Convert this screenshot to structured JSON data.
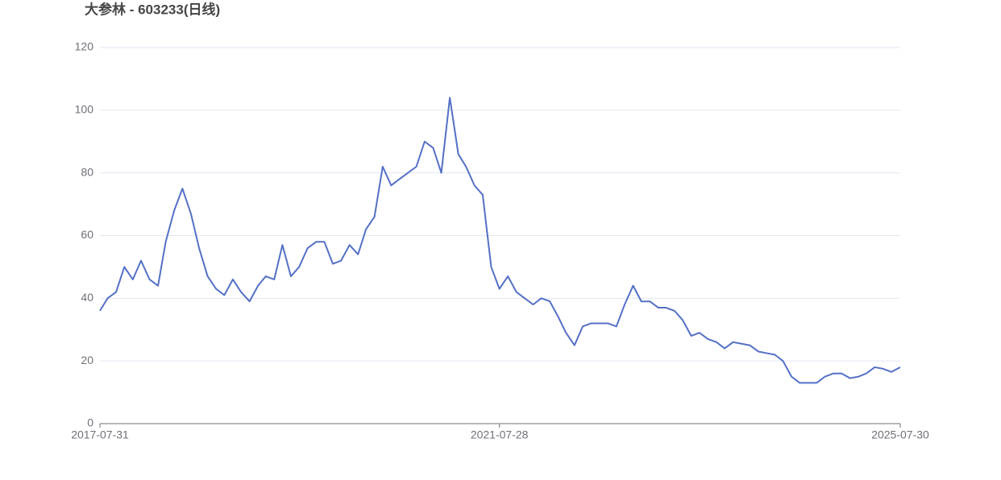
{
  "chart_data": {
    "type": "line",
    "title": "大参林 - 603233(日线)",
    "x": [
      "2017-07-31",
      "2017-08-28",
      "2017-09-28",
      "2017-10-28",
      "2017-11-28",
      "2017-12-28",
      "2018-01-28",
      "2018-02-28",
      "2018-03-28",
      "2018-04-28",
      "2018-05-28",
      "2018-06-28",
      "2018-07-28",
      "2018-08-28",
      "2018-09-28",
      "2018-10-28",
      "2018-11-28",
      "2018-12-28",
      "2019-01-28",
      "2019-02-28",
      "2019-03-28",
      "2019-04-28",
      "2019-05-28",
      "2019-06-28",
      "2019-07-28",
      "2019-08-28",
      "2019-09-28",
      "2019-10-28",
      "2019-11-28",
      "2019-12-28",
      "2020-01-28",
      "2020-02-28",
      "2020-03-28",
      "2020-04-28",
      "2020-05-28",
      "2020-06-28",
      "2020-07-28",
      "2020-08-28",
      "2020-09-28",
      "2020-10-28",
      "2020-11-28",
      "2020-12-28",
      "2021-01-28",
      "2021-02-28",
      "2021-03-28",
      "2021-04-28",
      "2021-05-28",
      "2021-06-28",
      "2021-07-28",
      "2021-08-28",
      "2021-09-28",
      "2021-10-28",
      "2021-11-28",
      "2021-12-28",
      "2022-01-28",
      "2022-02-28",
      "2022-03-28",
      "2022-04-28",
      "2022-05-28",
      "2022-06-28",
      "2022-07-28",
      "2022-08-28",
      "2022-09-28",
      "2022-10-28",
      "2022-11-28",
      "2022-12-28",
      "2023-01-28",
      "2023-02-28",
      "2023-03-28",
      "2023-04-28",
      "2023-05-28",
      "2023-06-28",
      "2023-07-28",
      "2023-08-28",
      "2023-09-28",
      "2023-10-28",
      "2023-11-28",
      "2023-12-28",
      "2024-01-28",
      "2024-02-28",
      "2024-03-28",
      "2024-04-28",
      "2024-05-28",
      "2024-06-28",
      "2024-07-28",
      "2024-08-28",
      "2024-09-28",
      "2024-10-28",
      "2024-11-28",
      "2024-12-28",
      "2025-01-28",
      "2025-02-28",
      "2025-03-28",
      "2025-04-28",
      "2025-05-28",
      "2025-06-28",
      "2025-07-30"
    ],
    "series": [
      {
        "color": "#5470c6",
        "values": [
          36,
          40,
          42,
          50,
          46,
          52,
          46,
          44,
          58,
          68,
          75,
          67,
          56,
          47,
          43,
          41,
          46,
          42,
          39,
          44,
          47,
          46,
          57,
          47,
          50,
          56,
          58,
          58,
          51,
          52,
          57,
          54,
          62,
          66,
          82,
          76,
          78,
          80,
          82,
          90,
          88,
          80,
          104,
          86,
          82,
          76,
          73,
          50,
          43,
          47,
          42,
          40,
          38,
          40,
          39,
          34,
          29,
          25,
          31,
          32,
          32,
          32,
          31,
          38,
          44,
          39,
          39,
          37,
          37,
          36,
          33,
          28,
          29,
          27,
          26,
          24,
          26,
          25.5,
          25,
          23,
          22.5,
          22,
          20,
          15,
          13,
          13,
          13,
          15,
          16,
          16,
          14.5,
          15,
          16,
          18,
          17.5,
          16.5,
          18
        ]
      }
    ],
    "xlim": [
      "2017-07-31",
      "2025-07-30"
    ],
    "xticks": [
      "2017-07-31",
      "2021-07-28",
      "2025-07-30"
    ],
    "ylim": [
      0,
      120
    ],
    "yticks": [
      0,
      20,
      40,
      60,
      80,
      100,
      120
    ],
    "grid": true
  }
}
